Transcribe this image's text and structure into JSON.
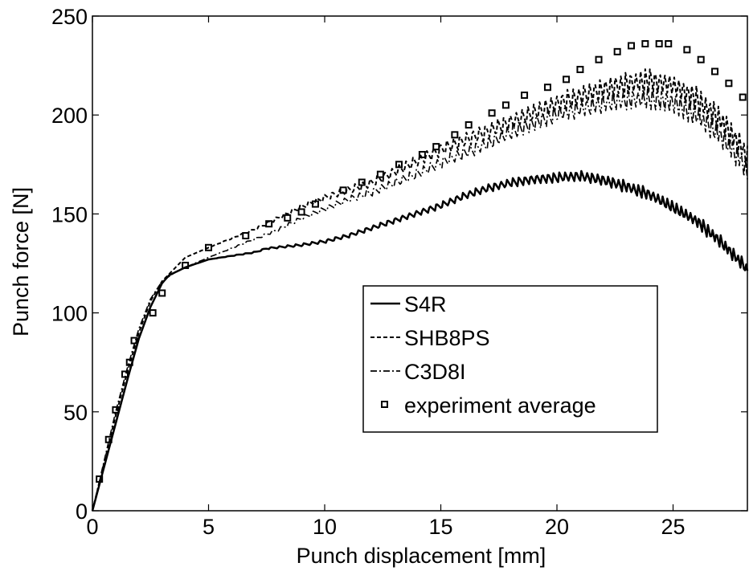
{
  "chart_data": {
    "type": "line",
    "xlabel": "Punch displacement [mm]",
    "ylabel": "Punch force [N]",
    "xlim": [
      0,
      28.2
    ],
    "ylim": [
      0,
      250
    ],
    "xticks": [
      0,
      5,
      10,
      15,
      20,
      25
    ],
    "yticks": [
      0,
      50,
      100,
      150,
      200,
      250
    ],
    "grid": false,
    "legend_position": "center-right",
    "series": [
      {
        "name": "S4R",
        "style": "solid",
        "color": "#000000",
        "x": [
          0,
          0.5,
          1,
          1.5,
          2,
          2.5,
          3,
          3.3,
          4,
          5,
          6,
          7,
          7.5,
          9,
          10,
          11,
          12,
          13,
          14,
          15,
          16,
          17,
          18,
          19,
          20,
          21,
          22,
          23,
          24,
          25,
          26,
          27,
          28,
          28.2
        ],
        "y": [
          0,
          22,
          44,
          66,
          87,
          103,
          115,
          119,
          123,
          127,
          129,
          131,
          133,
          135,
          137,
          140,
          144,
          148,
          152,
          156,
          161,
          165,
          168,
          170,
          171,
          172,
          170,
          167,
          163,
          157,
          150,
          140,
          128,
          125
        ],
        "oscillation": 7
      },
      {
        "name": "SHB8PS",
        "style": "dashed",
        "color": "#000000",
        "x": [
          0,
          0.5,
          1,
          1.5,
          2,
          2.5,
          3,
          3.5,
          4,
          5,
          6,
          7,
          8,
          9,
          10,
          11,
          12,
          13,
          14,
          15,
          16,
          17,
          18,
          19,
          20,
          21,
          22,
          23,
          24,
          25,
          26,
          27,
          28,
          28.2
        ],
        "y": [
          0,
          24,
          48,
          70,
          90,
          106,
          116,
          122,
          128,
          133,
          138,
          143,
          149,
          155,
          160,
          164,
          168,
          174,
          180,
          186,
          191,
          196,
          201,
          206,
          211,
          215,
          219,
          222,
          224,
          222,
          215,
          205,
          190,
          185
        ],
        "oscillation": 14
      },
      {
        "name": "C3D8I",
        "style": "dashdot",
        "color": "#000000",
        "x": [
          0,
          0.5,
          1,
          1.5,
          2,
          2.5,
          3,
          3.5,
          4,
          5,
          6,
          7,
          8,
          9,
          10,
          11,
          12,
          13,
          14,
          15,
          16,
          17,
          18,
          19,
          20,
          21,
          22,
          23,
          24,
          25,
          26,
          27,
          28,
          28.2
        ],
        "y": [
          0,
          25,
          50,
          72,
          92,
          107,
          116,
          120,
          123,
          128,
          133,
          138,
          143,
          149,
          154,
          159,
          163,
          168,
          173,
          179,
          184,
          189,
          195,
          200,
          205,
          208,
          211,
          213,
          214,
          212,
          206,
          196,
          182,
          177
        ],
        "oscillation": 12
      },
      {
        "name": "experiment average",
        "style": "markers",
        "color": "#000000",
        "x": [
          0.3,
          0.7,
          1.0,
          1.4,
          1.6,
          1.8,
          2.6,
          3.0,
          4.0,
          5.0,
          6.6,
          7.6,
          8.4,
          9.0,
          9.6,
          10.8,
          11.6,
          12.4,
          13.2,
          14.2,
          14.8,
          15.6,
          16.2,
          17.2,
          17.8,
          18.6,
          19.6,
          20.4,
          21.0,
          21.8,
          22.6,
          23.2,
          23.8,
          24.4,
          24.8,
          25.6,
          26.2,
          26.8,
          27.4,
          28.0
        ],
        "y": [
          16,
          36,
          51,
          69,
          75,
          86,
          100,
          110,
          124,
          133,
          139,
          145,
          148,
          151,
          155,
          162,
          166,
          170,
          175,
          180,
          184,
          190,
          195,
          201,
          205,
          210,
          214,
          218,
          223,
          228,
          232,
          235,
          236,
          236,
          236,
          233,
          228,
          222,
          216,
          209
        ]
      }
    ]
  }
}
